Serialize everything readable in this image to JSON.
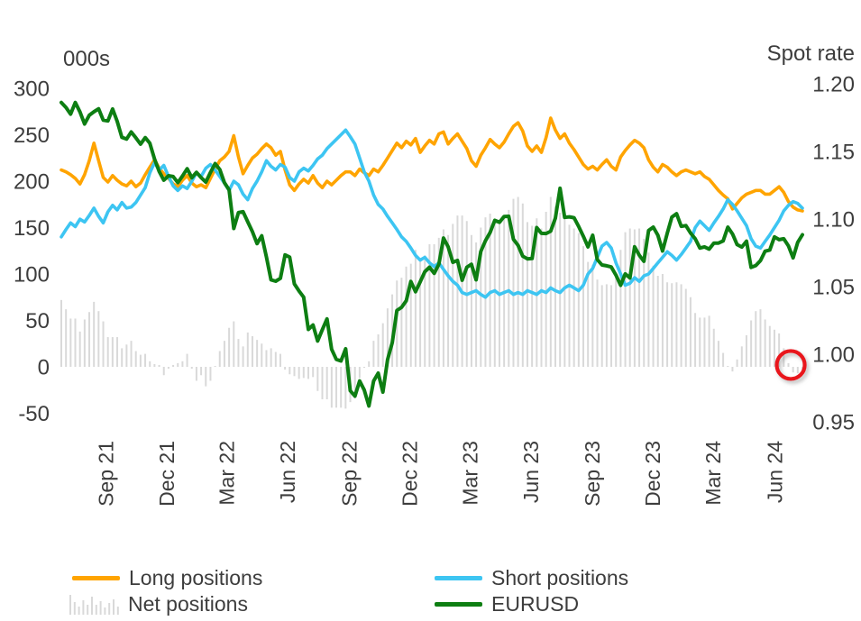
{
  "chart": {
    "left_axis_unit": "000s",
    "right_axis_title": "Spot rate",
    "text_color": "#3d3d3d"
  },
  "legend": {
    "items": [
      {
        "id": "long",
        "label": "Long positions",
        "swatch": "line",
        "color": "#FFA400"
      },
      {
        "id": "short",
        "label": "Short positions",
        "swatch": "line",
        "color": "#3DC5F2"
      },
      {
        "id": "net",
        "label": "Net positions",
        "swatch": "bars",
        "color": "#D9D9D9"
      },
      {
        "id": "eurusd",
        "label": "EURUSD",
        "swatch": "line",
        "color": "#0D7E12"
      }
    ]
  },
  "chart_data": {
    "type": "mixed",
    "title": "",
    "x_description": "Weekly observations, late Jun 2021 to mid Jul 2024",
    "x_tick_labels": [
      "Sep 21",
      "Dec 21",
      "Mar 22",
      "Jun 22",
      "Sep 22",
      "Dec 22",
      "Mar 23",
      "Jun 23",
      "Sep 23",
      "Dec 23",
      "Mar 24",
      "Jun 24"
    ],
    "x_tick_weeks": [
      9.4,
      22.4,
      35.3,
      48.4,
      61.6,
      74.6,
      87.5,
      100.6,
      113.7,
      126.7,
      139.7,
      152.9
    ],
    "left_axis": {
      "unit": "000s",
      "ticks": [
        300,
        250,
        200,
        150,
        100,
        50,
        0,
        -50
      ],
      "range": [
        -50,
        300
      ]
    },
    "right_axis": {
      "title": "Spot rate",
      "ticks": [
        1.2,
        1.15,
        1.1,
        1.05,
        1.0,
        0.95
      ],
      "range": [
        0.95,
        1.2
      ]
    },
    "grid": false,
    "legend_position": "bottom",
    "annotation": {
      "type": "circle",
      "color": "#E9121D",
      "week": 156.5,
      "axis": "left",
      "value": 2,
      "radius": 15.5,
      "note": "highlights latest near-zero net position"
    },
    "series": [
      {
        "name": "Long positions",
        "type": "line",
        "axis": "left",
        "color": "#FFA400",
        "width": 3.6,
        "values": [
          212,
          210,
          207,
          203,
          197,
          207,
          222,
          241,
          222,
          204,
          199,
          206,
          201,
          197,
          195,
          200,
          194,
          198,
          207,
          215,
          223,
          214,
          208,
          203,
          197,
          194,
          201,
          206,
          198,
          194,
          196,
          193,
          203,
          213,
          222,
          226,
          232,
          249,
          226,
          208,
          217,
          225,
          229,
          235,
          240,
          236,
          228,
          232,
          212,
          196,
          190,
          197,
          202,
          198,
          206,
          198,
          193,
          200,
          196,
          201,
          206,
          210,
          210,
          206,
          213,
          209,
          206,
          213,
          210,
          217,
          225,
          233,
          241,
          236,
          243,
          239,
          246,
          231,
          238,
          244,
          240,
          251,
          253,
          240,
          246,
          251,
          243,
          235,
          222,
          216,
          228,
          236,
          245,
          240,
          236,
          242,
          251,
          259,
          263,
          254,
          238,
          232,
          238,
          231,
          247,
          268,
          255,
          246,
          251,
          241,
          234,
          226,
          218,
          213,
          216,
          212,
          218,
          223,
          216,
          212,
          226,
          233,
          239,
          244,
          241,
          236,
          223,
          215,
          210,
          218,
          215,
          210,
          206,
          210,
          212,
          210,
          208,
          210,
          205,
          202,
          196,
          190,
          185,
          181,
          170,
          176,
          182,
          186,
          188,
          190,
          190,
          186,
          186,
          190,
          194,
          188,
          178,
          172,
          169,
          168
        ]
      },
      {
        "name": "Short positions",
        "type": "line",
        "axis": "left",
        "color": "#3DC5F2",
        "width": 3.6,
        "values": [
          140,
          148,
          155,
          151,
          159,
          156,
          163,
          171,
          162,
          155,
          167,
          174,
          169,
          177,
          171,
          172,
          177,
          185,
          193,
          209,
          220,
          212,
          217,
          205,
          195,
          190,
          195,
          192,
          200,
          209,
          205,
          214,
          218,
          212,
          205,
          198,
          190,
          200,
          196,
          186,
          180,
          192,
          200,
          210,
          222,
          216,
          212,
          218,
          215,
          204,
          200,
          210,
          214,
          211,
          217,
          224,
          228,
          235,
          240,
          245,
          250,
          255,
          248,
          240,
          225,
          210,
          200,
          185,
          175,
          170,
          162,
          155,
          148,
          140,
          135,
          128,
          120,
          115,
          118,
          112,
          108,
          112,
          105,
          98,
          92,
          88,
          80,
          78,
          80,
          82,
          78,
          75,
          80,
          82,
          78,
          80,
          82,
          78,
          80,
          78,
          82,
          80,
          78,
          82,
          80,
          85,
          82,
          80,
          85,
          88,
          85,
          82,
          88,
          100,
          106,
          118,
          130,
          134,
          128,
          112,
          100,
          88,
          90,
          96,
          92,
          98,
          100,
          106,
          112,
          118,
          124,
          120,
          115,
          121,
          128,
          135,
          150,
          157,
          152,
          147,
          155,
          162,
          170,
          180,
          175,
          168,
          160,
          152,
          138,
          130,
          128,
          135,
          142,
          150,
          158,
          168,
          174,
          178,
          176,
          171
        ]
      },
      {
        "name": "Net positions",
        "type": "bar",
        "axis": "left",
        "color": "#D9D9D9",
        "width": 2,
        "note": "net = long minus short",
        "values": [
          72,
          62,
          52,
          52,
          38,
          51,
          59,
          70,
          60,
          49,
          32,
          32,
          32,
          20,
          24,
          28,
          17,
          13,
          14,
          6,
          3,
          2,
          -9,
          -2,
          2,
          4,
          6,
          14,
          -2,
          -15,
          -9,
          -21,
          -15,
          1,
          17,
          28,
          42,
          49,
          30,
          22,
          37,
          33,
          29,
          25,
          18,
          20,
          16,
          14,
          -3,
          -8,
          -10,
          -13,
          -12,
          -13,
          -11,
          -26,
          -35,
          -35,
          -44,
          -44,
          -44,
          -45,
          -38,
          -34,
          -12,
          -1,
          6,
          28,
          35,
          47,
          63,
          78,
          93,
          96,
          108,
          111,
          126,
          116,
          120,
          132,
          132,
          139,
          148,
          142,
          154,
          163,
          163,
          157,
          142,
          134,
          150,
          161,
          165,
          158,
          158,
          162,
          169,
          181,
          183,
          176,
          156,
          152,
          160,
          149,
          167,
          183,
          173,
          166,
          166,
          153,
          149,
          144,
          130,
          113,
          110,
          94,
          88,
          89,
          88,
          100,
          126,
          145,
          149,
          148,
          149,
          138,
          123,
          109,
          98,
          100,
          91,
          90,
          91,
          89,
          84,
          75,
          58,
          53,
          53,
          55,
          41,
          28,
          15,
          1,
          -5,
          8,
          22,
          34,
          50,
          60,
          62,
          51,
          44,
          40,
          36,
          20,
          4,
          -6,
          -7,
          -3
        ]
      },
      {
        "name": "EURUSD",
        "type": "line",
        "axis": "right",
        "color": "#0D7E12",
        "width": 4,
        "values": [
          1.1862,
          1.1825,
          1.1776,
          1.1862,
          1.1792,
          1.1703,
          1.1767,
          1.1793,
          1.1815,
          1.1731,
          1.1726,
          1.1814,
          1.1722,
          1.1604,
          1.1591,
          1.1644,
          1.1601,
          1.1554,
          1.1602,
          1.1561,
          1.1444,
          1.1351,
          1.1287,
          1.132,
          1.1314,
          1.1269,
          1.1318,
          1.1372,
          1.1305,
          1.1345,
          1.1306,
          1.1273,
          1.1344,
          1.141,
          1.1366,
          1.1269,
          1.1216,
          1.093,
          1.1048,
          1.1054,
          1.0979,
          1.0906,
          1.0818,
          1.0876,
          1.0719,
          1.055,
          1.054,
          1.0561,
          1.0735,
          1.0718,
          1.052,
          1.0467,
          1.0422,
          1.0183,
          1.0216,
          1.0098,
          1.0181,
          1.0261,
          1.0037,
          0.9962,
          0.995,
          1.004,
          0.973,
          0.969,
          0.9802,
          0.9735,
          0.9617,
          0.9802,
          0.986,
          0.972,
          0.996,
          1.0086,
          1.0323,
          1.0347,
          1.0395,
          1.0538,
          1.0462,
          1.0536,
          1.061,
          1.0643,
          1.0598,
          1.0666,
          1.0859,
          1.0794,
          1.0679,
          1.0694,
          1.0547,
          1.0643,
          1.0665,
          1.055,
          1.076,
          1.084,
          1.09,
          1.099,
          1.0976,
          1.1018,
          1.102,
          1.085,
          1.0805,
          1.0725,
          1.0705,
          1.0708,
          1.0937,
          1.0894,
          1.0893,
          1.091,
          1.1006,
          1.1227,
          1.1012,
          1.1016,
          1.1009,
          1.0945,
          1.0873,
          1.0794,
          1.088,
          1.07,
          1.066,
          1.0654,
          1.0645,
          1.0585,
          1.051,
          1.0594,
          1.0564,
          1.0795,
          1.0732,
          1.0687,
          1.0915,
          1.094,
          1.088,
          1.0763,
          1.0895,
          1.1014,
          1.1039,
          1.0946,
          1.0951,
          1.0897,
          1.0854,
          1.0785,
          1.0794,
          1.0777,
          1.0821,
          1.0822,
          1.0838,
          1.094,
          1.0889,
          1.0811,
          1.0793,
          1.0836,
          1.0642,
          1.0656,
          1.0693,
          1.0762,
          1.0771,
          1.0868,
          1.0847,
          1.0854,
          1.0801,
          1.0713,
          1.0827,
          1.0883
        ]
      }
    ]
  }
}
